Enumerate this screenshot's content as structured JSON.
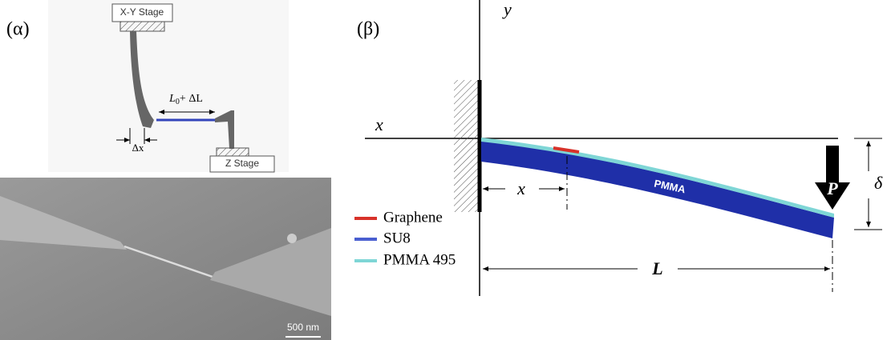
{
  "panel_a": {
    "label": "(α)",
    "schematic": {
      "top_stage": "X-Y Stage",
      "bottom_stage": "Z Stage",
      "gap_label": {
        "symbol": "L",
        "subscript": "0",
        "rest": "+ ΔL"
      },
      "deflection_label": "Δx"
    },
    "sem_image": {
      "scale_bar": "500 nm"
    }
  },
  "panel_b": {
    "label": "(β)",
    "axes": {
      "y": "y",
      "x": "x"
    },
    "beam_label": "PMMA",
    "load": "P",
    "deflection": "δ",
    "length": "L",
    "position": "x",
    "legend": [
      {
        "name": "Graphene"
      },
      {
        "name": "SU8"
      },
      {
        "name": "PMMA 495"
      }
    ]
  }
}
